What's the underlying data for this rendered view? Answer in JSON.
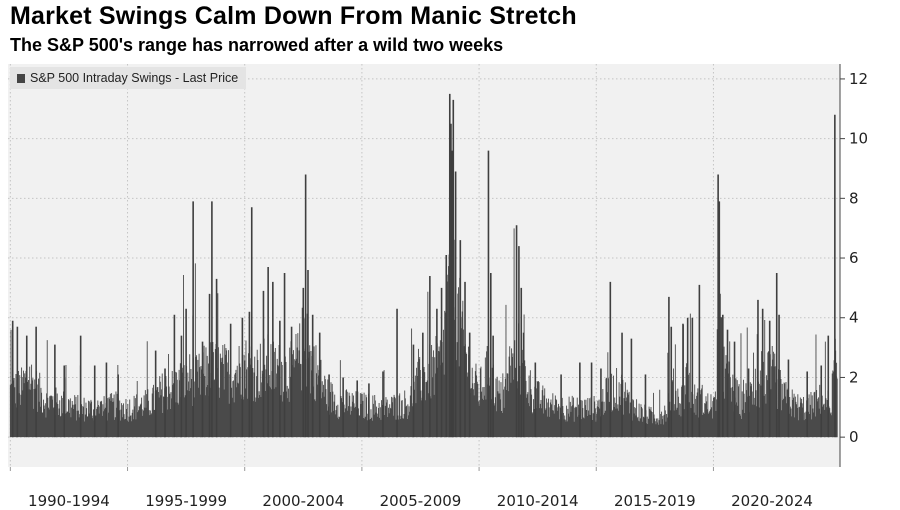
{
  "header": {
    "title": "Market Swings Calm Down From Manic Stretch",
    "subtitle": "The S&P 500's range has narrowed after a wild two weeks"
  },
  "legend": {
    "label": "S&P 500 Intraday Swings - Last Price",
    "color": "#444444"
  },
  "chart_data": {
    "type": "bar",
    "title": "Market Swings Calm Down From Manic Stretch",
    "subtitle": "The S&P 500's range has narrowed after a wild two weeks",
    "series_name": "S&P 500 Intraday Swings - Last Price",
    "x_range": [
      1989.9,
      2025.4
    ],
    "ylim": [
      -1,
      12.5
    ],
    "y_ticks": [
      0,
      2,
      4,
      6,
      8,
      10,
      12
    ],
    "x_categories": [
      {
        "label": "1990-1994",
        "start": 1990,
        "end": 1995
      },
      {
        "label": "1995-1999",
        "start": 1995,
        "end": 2000
      },
      {
        "label": "2000-2004",
        "start": 2000,
        "end": 2005
      },
      {
        "label": "2005-2009",
        "start": 2005,
        "end": 2010
      },
      {
        "label": "2010-2014",
        "start": 2010,
        "end": 2015
      },
      {
        "label": "2015-2019",
        "start": 2015,
        "end": 2020
      },
      {
        "label": "2020-2024",
        "start": 2020,
        "end": 2025
      }
    ],
    "baseline_profile": [
      [
        1990.0,
        1.6
      ],
      [
        1990.5,
        1.7
      ],
      [
        1990.8,
        2.2
      ],
      [
        1991.0,
        1.8
      ],
      [
        1991.5,
        1.3
      ],
      [
        1992.0,
        1.2
      ],
      [
        1993.0,
        1.0
      ],
      [
        1994.0,
        1.0
      ],
      [
        1994.5,
        1.1
      ],
      [
        1995.0,
        1.0
      ],
      [
        1996.0,
        1.2
      ],
      [
        1996.5,
        1.6
      ],
      [
        1997.0,
        1.7
      ],
      [
        1997.5,
        2.1
      ],
      [
        1998.0,
        2.0
      ],
      [
        1998.5,
        2.4
      ],
      [
        1999.0,
        2.3
      ],
      [
        1999.5,
        2.2
      ],
      [
        2000.0,
        2.5
      ],
      [
        2000.5,
        2.3
      ],
      [
        2001.0,
        2.5
      ],
      [
        2001.5,
        2.3
      ],
      [
        2002.0,
        2.3
      ],
      [
        2002.5,
        3.0
      ],
      [
        2003.0,
        2.4
      ],
      [
        2003.5,
        1.5
      ],
      [
        2004.0,
        1.2
      ],
      [
        2005.0,
        1.1
      ],
      [
        2006.0,
        1.0
      ],
      [
        2006.5,
        1.1
      ],
      [
        2007.0,
        1.2
      ],
      [
        2007.5,
        2.0
      ],
      [
        2008.0,
        2.3
      ],
      [
        2008.4,
        2.6
      ],
      [
        2008.8,
        5.5
      ],
      [
        2009.0,
        4.6
      ],
      [
        2009.3,
        3.3
      ],
      [
        2009.7,
        2.0
      ],
      [
        2010.0,
        1.6
      ],
      [
        2010.4,
        2.3
      ],
      [
        2010.8,
        1.5
      ],
      [
        2011.0,
        1.3
      ],
      [
        2011.6,
        3.0
      ],
      [
        2011.9,
        2.2
      ],
      [
        2012.3,
        1.5
      ],
      [
        2013.0,
        1.1
      ],
      [
        2014.0,
        1.0
      ],
      [
        2015.0,
        1.0
      ],
      [
        2015.6,
        1.6
      ],
      [
        2016.0,
        1.7
      ],
      [
        2016.5,
        1.1
      ],
      [
        2017.0,
        0.8
      ],
      [
        2017.5,
        0.7
      ],
      [
        2018.0,
        0.9
      ],
      [
        2018.2,
        1.8
      ],
      [
        2018.6,
        1.2
      ],
      [
        2018.9,
        2.1
      ],
      [
        2019.2,
        1.3
      ],
      [
        2019.8,
        1.1
      ],
      [
        2020.1,
        1.1
      ],
      [
        2020.2,
        4.5
      ],
      [
        2020.4,
        2.4
      ],
      [
        2020.8,
        1.6
      ],
      [
        2021.2,
        1.2
      ],
      [
        2022.0,
        1.8
      ],
      [
        2022.5,
        2.2
      ],
      [
        2023.0,
        1.4
      ],
      [
        2023.5,
        1.1
      ],
      [
        2024.0,
        1.0
      ],
      [
        2024.5,
        1.3
      ],
      [
        2025.0,
        1.1
      ],
      [
        2025.1,
        1.8
      ],
      [
        2025.2,
        2.5
      ],
      [
        2025.3,
        1.6
      ]
    ],
    "spikes": [
      [
        1990.1,
        3.9
      ],
      [
        1990.3,
        3.7
      ],
      [
        1990.7,
        3.4
      ],
      [
        1991.1,
        3.7
      ],
      [
        1991.9,
        3.1
      ],
      [
        1992.3,
        2.4
      ],
      [
        1993.0,
        3.4
      ],
      [
        1993.6,
        2.4
      ],
      [
        1994.1,
        2.5
      ],
      [
        1994.6,
        2.1
      ],
      [
        1996.2,
        2.9
      ],
      [
        1996.6,
        2.3
      ],
      [
        1997.0,
        4.1
      ],
      [
        1997.3,
        3.4
      ],
      [
        1997.5,
        4.3
      ],
      [
        1997.8,
        7.9
      ],
      [
        1998.2,
        3.2
      ],
      [
        1998.5,
        4.8
      ],
      [
        1998.6,
        7.9
      ],
      [
        1998.8,
        5.3
      ],
      [
        1999.4,
        3.8
      ],
      [
        1999.9,
        4.0
      ],
      [
        2000.2,
        4.2
      ],
      [
        2000.3,
        7.7
      ],
      [
        2000.8,
        4.9
      ],
      [
        2001.0,
        5.7
      ],
      [
        2001.2,
        5.2
      ],
      [
        2001.5,
        3.9
      ],
      [
        2001.7,
        5.5
      ],
      [
        2002.0,
        3.7
      ],
      [
        2002.5,
        5.0
      ],
      [
        2002.6,
        8.8
      ],
      [
        2002.7,
        5.6
      ],
      [
        2002.9,
        4.1
      ],
      [
        2003.2,
        3.5
      ],
      [
        2003.6,
        2.1
      ],
      [
        2004.2,
        2.0
      ],
      [
        2004.8,
        1.9
      ],
      [
        2005.3,
        1.8
      ],
      [
        2005.9,
        2.2
      ],
      [
        2006.5,
        4.3
      ],
      [
        2007.2,
        3.1
      ],
      [
        2007.6,
        3.5
      ],
      [
        2007.9,
        5.4
      ],
      [
        2008.2,
        4.3
      ],
      [
        2008.4,
        5.0
      ],
      [
        2008.6,
        6.1
      ],
      [
        2008.75,
        11.5
      ],
      [
        2008.8,
        10.5
      ],
      [
        2008.85,
        9.6
      ],
      [
        2008.9,
        11.3
      ],
      [
        2009.0,
        8.9
      ],
      [
        2009.2,
        6.6
      ],
      [
        2009.4,
        5.2
      ],
      [
        2009.6,
        3.5
      ],
      [
        2010.4,
        9.6
      ],
      [
        2010.5,
        5.5
      ],
      [
        2010.6,
        3.4
      ],
      [
        2011.6,
        7.1
      ],
      [
        2011.7,
        6.4
      ],
      [
        2011.8,
        5.0
      ],
      [
        2011.9,
        3.5
      ],
      [
        2012.4,
        2.5
      ],
      [
        2013.5,
        2.1
      ],
      [
        2014.3,
        2.5
      ],
      [
        2014.8,
        2.5
      ],
      [
        2015.2,
        2.3
      ],
      [
        2015.6,
        5.2
      ],
      [
        2016.1,
        3.5
      ],
      [
        2016.5,
        3.3
      ],
      [
        2017.1,
        2.1
      ],
      [
        2018.1,
        4.7
      ],
      [
        2018.2,
        3.7
      ],
      [
        2018.7,
        3.8
      ],
      [
        2018.9,
        4.0
      ],
      [
        2019.1,
        4.0
      ],
      [
        2019.4,
        5.1
      ],
      [
        2020.2,
        8.8
      ],
      [
        2020.25,
        7.9
      ],
      [
        2020.4,
        4.1
      ],
      [
        2020.6,
        3.6
      ],
      [
        2020.9,
        3.2
      ],
      [
        2021.5,
        2.3
      ],
      [
        2021.9,
        4.6
      ],
      [
        2022.1,
        4.3
      ],
      [
        2022.4,
        3.9
      ],
      [
        2022.7,
        5.5
      ],
      [
        2022.8,
        4.1
      ],
      [
        2023.2,
        2.6
      ],
      [
        2024.0,
        2.2
      ],
      [
        2024.6,
        2.4
      ],
      [
        2024.9,
        3.4
      ],
      [
        2025.18,
        10.8
      ],
      [
        2025.2,
        2.9
      ]
    ]
  }
}
